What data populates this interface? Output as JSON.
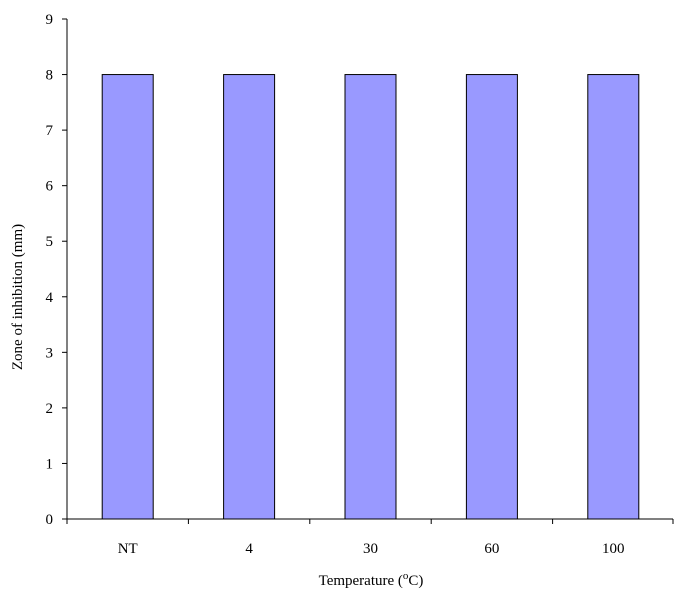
{
  "chart_data": {
    "type": "bar",
    "categories": [
      "NT",
      "4",
      "30",
      "60",
      "100"
    ],
    "values": [
      8,
      8,
      8,
      8,
      8
    ],
    "title": "",
    "xlabel_prefix": "Temperature  (",
    "xlabel_superscript": "o",
    "xlabel_suffix": "C)",
    "ylabel": "Zone  of inhibition  (mm)",
    "ylim": [
      0,
      9
    ],
    "yticks": [
      0,
      1,
      2,
      3,
      4,
      5,
      6,
      7,
      8,
      9
    ],
    "grid": false,
    "legend": "none",
    "colors": {
      "bar_fill": "#9999ff",
      "bar_stroke": "#000000",
      "axis": "#000000"
    }
  }
}
